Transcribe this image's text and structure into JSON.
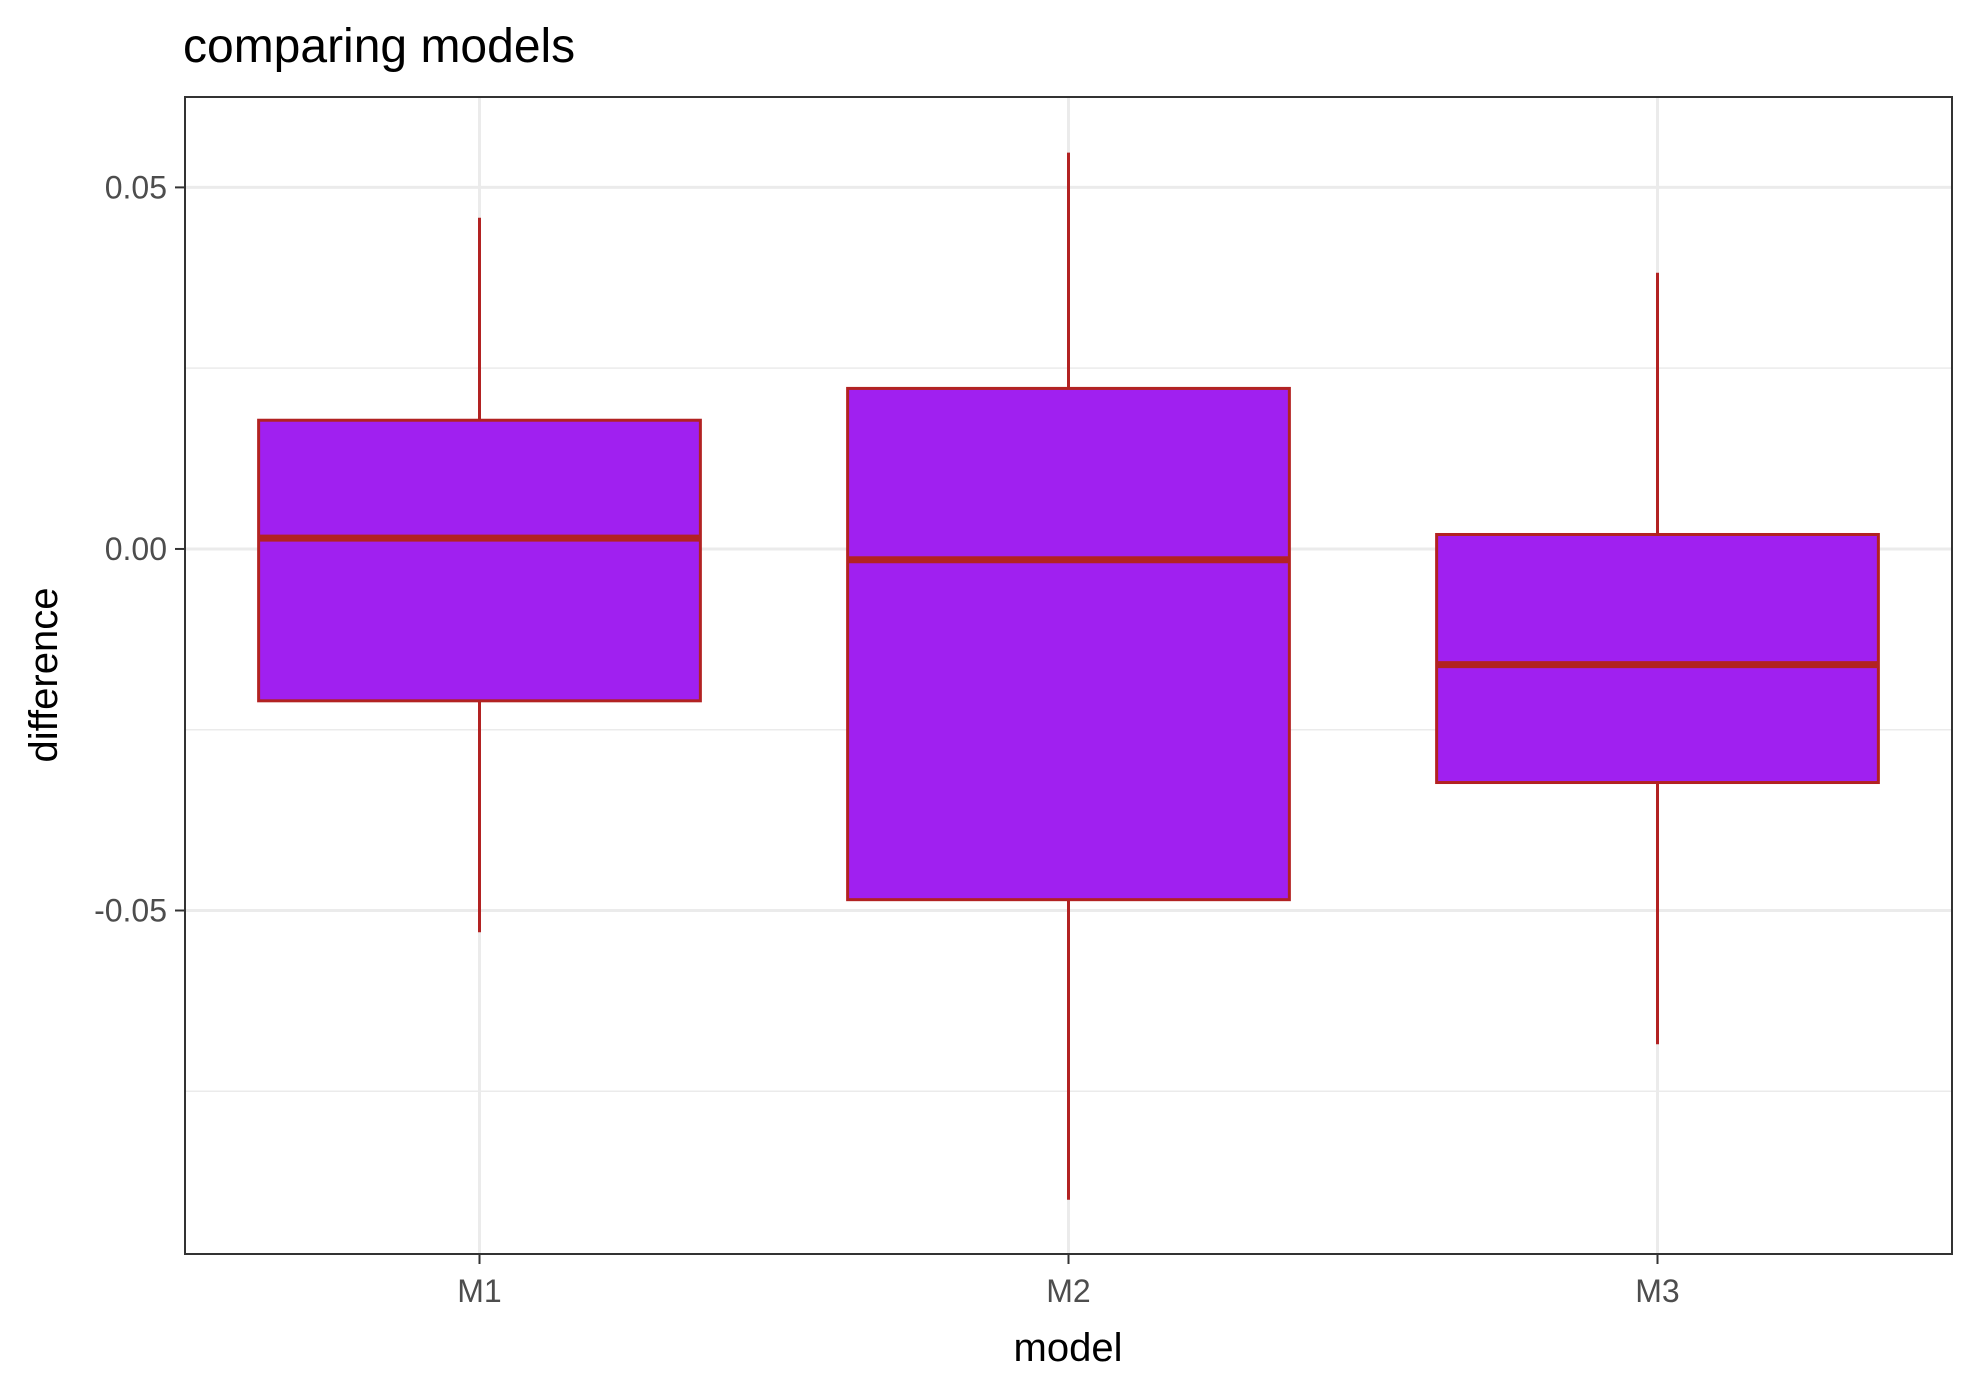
{
  "chart_data": {
    "type": "boxplot",
    "title": "comparing models",
    "xlabel": "model",
    "ylabel": "difference",
    "categories": [
      "M1",
      "M2",
      "M3"
    ],
    "boxes": [
      {
        "category": "M1",
        "whisker_low": -0.053,
        "q1": -0.021,
        "median": 0.0015,
        "q3": 0.0178,
        "whisker_high": 0.0458
      },
      {
        "category": "M2",
        "whisker_low": -0.09,
        "q1": -0.0485,
        "median": -0.0015,
        "q3": 0.0222,
        "whisker_high": 0.0548
      },
      {
        "category": "M3",
        "whisker_low": -0.0685,
        "q1": -0.0323,
        "median": -0.016,
        "q3": 0.002,
        "whisker_high": 0.0382
      }
    ],
    "y_ticks": [
      -0.05,
      0.0,
      0.05
    ],
    "y_tick_labels": [
      "-0.05",
      "0.00",
      "0.05"
    ],
    "y_minor_ticks": [
      -0.075,
      -0.025,
      0.025
    ],
    "ylim": [
      -0.0975,
      0.0625
    ],
    "grid": true,
    "colors": {
      "fill": "#a020f0",
      "stroke": "#b22222",
      "grid": "#ebebeb",
      "panel_border": "#333333"
    }
  }
}
